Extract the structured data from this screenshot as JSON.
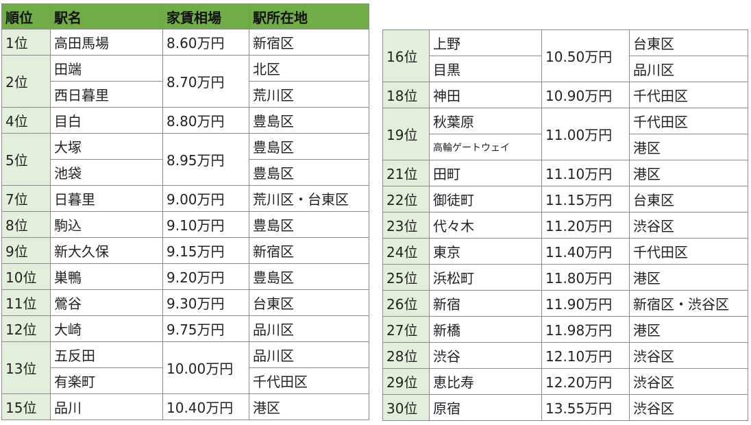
{
  "header": [
    "順位",
    "駅名",
    "家賃相場",
    "駅所在地"
  ],
  "tables": [
    {
      "groups": [
        {
          "rank": "1位",
          "rent": "8.60万円",
          "stations": [
            {
              "name": "高田馬場",
              "ward": "新宿区"
            }
          ]
        },
        {
          "rank": "2位",
          "rent": "8.70万円",
          "stations": [
            {
              "name": "田端",
              "ward": "北区"
            },
            {
              "name": "西日暮里",
              "ward": "荒川区"
            }
          ]
        },
        {
          "rank": "4位",
          "rent": "8.80万円",
          "stations": [
            {
              "name": "目白",
              "ward": "豊島区"
            }
          ]
        },
        {
          "rank": "5位",
          "rent": "8.95万円",
          "stations": [
            {
              "name": "大塚",
              "ward": "豊島区"
            },
            {
              "name": "池袋",
              "ward": "豊島区"
            }
          ]
        },
        {
          "rank": "7位",
          "rent": "9.00万円",
          "stations": [
            {
              "name": "日暮里",
              "ward": "荒川区・台東区"
            }
          ]
        },
        {
          "rank": "8位",
          "rent": "9.10万円",
          "stations": [
            {
              "name": "駒込",
              "ward": "豊島区"
            }
          ]
        },
        {
          "rank": "9位",
          "rent": "9.15万円",
          "stations": [
            {
              "name": "新大久保",
              "ward": "新宿区"
            }
          ]
        },
        {
          "rank": "10位",
          "rent": "9.20万円",
          "stations": [
            {
              "name": "巣鴨",
              "ward": "豊島区"
            }
          ]
        },
        {
          "rank": "11位",
          "rent": "9.30万円",
          "stations": [
            {
              "name": "鶯谷",
              "ward": "台東区"
            }
          ]
        },
        {
          "rank": "12位",
          "rent": "9.75万円",
          "stations": [
            {
              "name": "大崎",
              "ward": "品川区"
            }
          ]
        },
        {
          "rank": "13位",
          "rent": "10.00万円",
          "stations": [
            {
              "name": "五反田",
              "ward": "品川区"
            },
            {
              "name": "有楽町",
              "ward": "千代田区"
            }
          ]
        },
        {
          "rank": "15位",
          "rent": "10.40万円",
          "stations": [
            {
              "name": "品川",
              "ward": "港区"
            }
          ]
        }
      ]
    },
    {
      "groups": [
        {
          "rank": "16位",
          "rent": "10.50万円",
          "stations": [
            {
              "name": "上野",
              "ward": "台東区"
            },
            {
              "name": "目黒",
              "ward": "品川区"
            }
          ]
        },
        {
          "rank": "18位",
          "rent": "10.90万円",
          "stations": [
            {
              "name": "神田",
              "ward": "千代田区"
            }
          ]
        },
        {
          "rank": "19位",
          "rent": "11.00万円",
          "stations": [
            {
              "name": "秋葉原",
              "ward": "千代田区"
            },
            {
              "name": "高輪ゲートウェイ",
              "ward": "港区"
            }
          ]
        },
        {
          "rank": "21位",
          "rent": "11.10万円",
          "stations": [
            {
              "name": "田町",
              "ward": "港区"
            }
          ]
        },
        {
          "rank": "22位",
          "rent": "11.15万円",
          "stations": [
            {
              "name": "御徒町",
              "ward": "台東区"
            }
          ]
        },
        {
          "rank": "23位",
          "rent": "11.20万円",
          "stations": [
            {
              "name": "代々木",
              "ward": "渋谷区"
            }
          ]
        },
        {
          "rank": "24位",
          "rent": "11.40万円",
          "stations": [
            {
              "name": "東京",
              "ward": "千代田区"
            }
          ]
        },
        {
          "rank": "25位",
          "rent": "11.80万円",
          "stations": [
            {
              "name": "浜松町",
              "ward": "港区"
            }
          ]
        },
        {
          "rank": "26位",
          "rent": "11.90万円",
          "stations": [
            {
              "name": "新宿",
              "ward": "新宿区・渋谷区"
            }
          ]
        },
        {
          "rank": "27位",
          "rent": "11.98万円",
          "stations": [
            {
              "name": "新橋",
              "ward": "港区"
            }
          ]
        },
        {
          "rank": "28位",
          "rent": "12.10万円",
          "stations": [
            {
              "name": "渋谷",
              "ward": "渋谷区"
            }
          ]
        },
        {
          "rank": "29位",
          "rent": "12.20万円",
          "stations": [
            {
              "name": "恵比寿",
              "ward": "渋谷区"
            }
          ]
        },
        {
          "rank": "30位",
          "rent": "13.55万円",
          "stations": [
            {
              "name": "原宿",
              "ward": "渋谷区"
            }
          ]
        }
      ]
    }
  ]
}
